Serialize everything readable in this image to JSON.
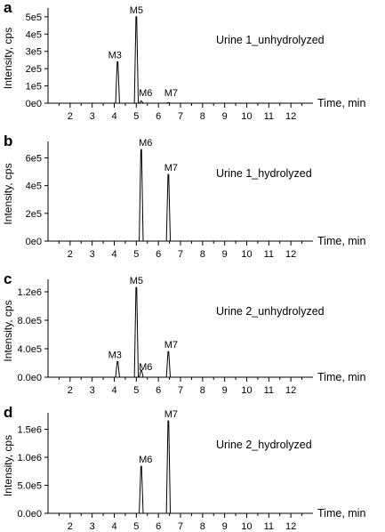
{
  "chart_data": [
    {
      "type": "line",
      "panel": "a",
      "title": "Urine 1_unhydrolyzed",
      "ylabel": "Intensity, cps",
      "xlabel": "Time, min",
      "xlim": [
        1.0,
        13.0
      ],
      "x_ticks": [
        "2",
        "3",
        "4",
        "5",
        "6",
        "7",
        "8",
        "9",
        "10",
        "11",
        "12"
      ],
      "ylim": [
        0,
        520000
      ],
      "y_ticks": [
        0,
        100000,
        200000,
        300000,
        400000,
        500000
      ],
      "y_tick_labels": [
        "0e0",
        "1e5",
        "2e5",
        "3e5",
        "4e5",
        "5e5"
      ],
      "peaks": [
        {
          "label": "M3",
          "time": 4.15,
          "height": 240000
        },
        {
          "label": "M5",
          "time": 5.0,
          "height": 500000
        },
        {
          "label": "M6",
          "time": 5.22,
          "height": 12000
        },
        {
          "label": "M7",
          "time": 6.45,
          "height": 3000
        }
      ]
    },
    {
      "type": "line",
      "panel": "b",
      "title": "Urine 1_hydrolyzed",
      "ylabel": "Intensity, cps",
      "xlabel": "Time, min",
      "xlim": [
        1.0,
        13.0
      ],
      "x_ticks": [
        "2",
        "3",
        "4",
        "5",
        "6",
        "7",
        "8",
        "9",
        "10",
        "11",
        "12"
      ],
      "ylim": [
        0,
        680000
      ],
      "y_ticks": [
        0,
        200000,
        400000,
        600000
      ],
      "y_tick_labels": [
        "0e0",
        "2e5",
        "4e5",
        "6e5"
      ],
      "peaks": [
        {
          "label": "M6",
          "time": 5.22,
          "height": 660000
        },
        {
          "label": "M7",
          "time": 6.45,
          "height": 480000
        }
      ]
    },
    {
      "type": "line",
      "panel": "c",
      "title": "Urine 2_unhydrolyzed",
      "ylabel": "Intensity, cps",
      "xlabel": "Time, min",
      "xlim": [
        1.0,
        13.0
      ],
      "x_ticks": [
        "2",
        "3",
        "4",
        "5",
        "6",
        "7",
        "8",
        "9",
        "10",
        "11",
        "12"
      ],
      "ylim": [
        0,
        1300000
      ],
      "y_ticks": [
        0,
        400000,
        800000,
        1200000
      ],
      "y_tick_labels": [
        "0.0e0",
        "4.0e5",
        "8.0e5",
        "1.2e6"
      ],
      "peaks": [
        {
          "label": "M3",
          "time": 4.15,
          "height": 220000
        },
        {
          "label": "M5",
          "time": 5.0,
          "height": 1260000
        },
        {
          "label": "M6",
          "time": 5.22,
          "height": 100000
        },
        {
          "label": "M7",
          "time": 6.45,
          "height": 360000
        }
      ]
    },
    {
      "type": "line",
      "panel": "d",
      "title": "Urine 2_hydrolyzed",
      "ylabel": "Intensity, cps",
      "xlabel": "Time, min",
      "xlim": [
        1.0,
        13.0
      ],
      "x_ticks": [
        "2",
        "3",
        "4",
        "5",
        "6",
        "7",
        "8",
        "9",
        "10",
        "11",
        "12"
      ],
      "ylim": [
        0,
        1700000
      ],
      "y_ticks": [
        0,
        500000,
        1000000,
        1500000
      ],
      "y_tick_labels": [
        "0.0e0",
        "5.0e5",
        "1.0e6",
        "1.5e6"
      ],
      "peaks": [
        {
          "label": "M6",
          "time": 5.22,
          "height": 840000
        },
        {
          "label": "M7",
          "time": 6.45,
          "height": 1650000
        }
      ]
    }
  ]
}
